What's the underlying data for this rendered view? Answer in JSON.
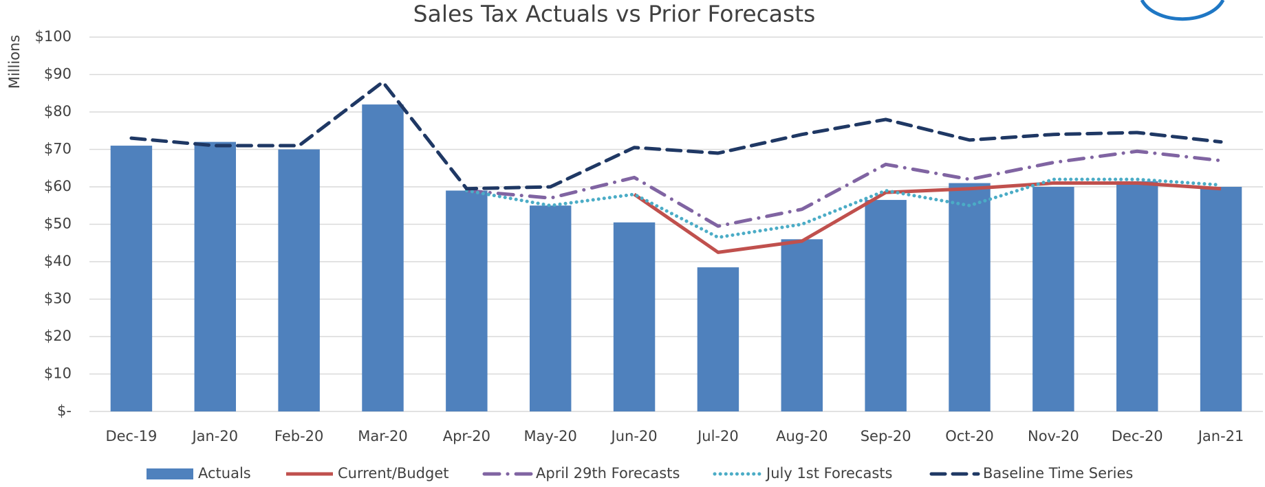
{
  "chart_data": {
    "type": "bar_line",
    "title": "Sales Tax Actuals vs Prior Forecasts",
    "y_label": "Millions",
    "categories": [
      "Dec-19",
      "Jan-20",
      "Feb-20",
      "Mar-20",
      "Apr-20",
      "May-20",
      "Jun-20",
      "Jul-20",
      "Aug-20",
      "Sep-20",
      "Oct-20",
      "Nov-20",
      "Dec-20",
      "Jan-21"
    ],
    "series": [
      {
        "name": "Actuals",
        "type": "bar",
        "color": "#4f81bd",
        "values": [
          71,
          72,
          70,
          82,
          59,
          55,
          50.5,
          38.5,
          46,
          56.5,
          61,
          60,
          61.5,
          60
        ]
      },
      {
        "name": "Current/Budget",
        "type": "line",
        "style": "solid",
        "color": "#c0504d",
        "values": [
          null,
          null,
          null,
          null,
          null,
          null,
          58,
          42.5,
          45.5,
          58.5,
          59.5,
          61,
          61,
          59.5
        ]
      },
      {
        "name": "April 29th Forecasts",
        "type": "line",
        "style": "dashdot",
        "color": "#8064a2",
        "values": [
          null,
          null,
          null,
          null,
          59,
          57,
          62.5,
          49.5,
          54,
          66,
          62,
          66.5,
          69.5,
          67
        ]
      },
      {
        "name": "July 1st Forecasts",
        "type": "line",
        "style": "dotted",
        "color": "#4bacc6",
        "values": [
          null,
          null,
          null,
          null,
          59,
          55,
          58,
          46.5,
          50,
          59,
          55,
          62,
          62,
          60.5
        ]
      },
      {
        "name": "Baseline Time Series",
        "type": "line",
        "style": "dashed",
        "color": "#1f3864",
        "values": [
          73,
          71,
          71,
          88,
          59.5,
          60,
          70.5,
          69,
          74,
          78,
          72.5,
          74,
          74.5,
          72
        ]
      }
    ],
    "ylim": [
      0,
      100
    ],
    "yticks": [
      {
        "value": 0,
        "label": "$-"
      },
      {
        "value": 10,
        "label": "$10"
      },
      {
        "value": 20,
        "label": "$20"
      },
      {
        "value": 30,
        "label": "$30"
      },
      {
        "value": 40,
        "label": "$40"
      },
      {
        "value": 50,
        "label": "$50"
      },
      {
        "value": 60,
        "label": "$60"
      },
      {
        "value": 70,
        "label": "$70"
      },
      {
        "value": 80,
        "label": "$80"
      },
      {
        "value": 90,
        "label": "$90"
      },
      {
        "value": 100,
        "label": "$100"
      }
    ],
    "grid": true,
    "legend": "bottom"
  }
}
